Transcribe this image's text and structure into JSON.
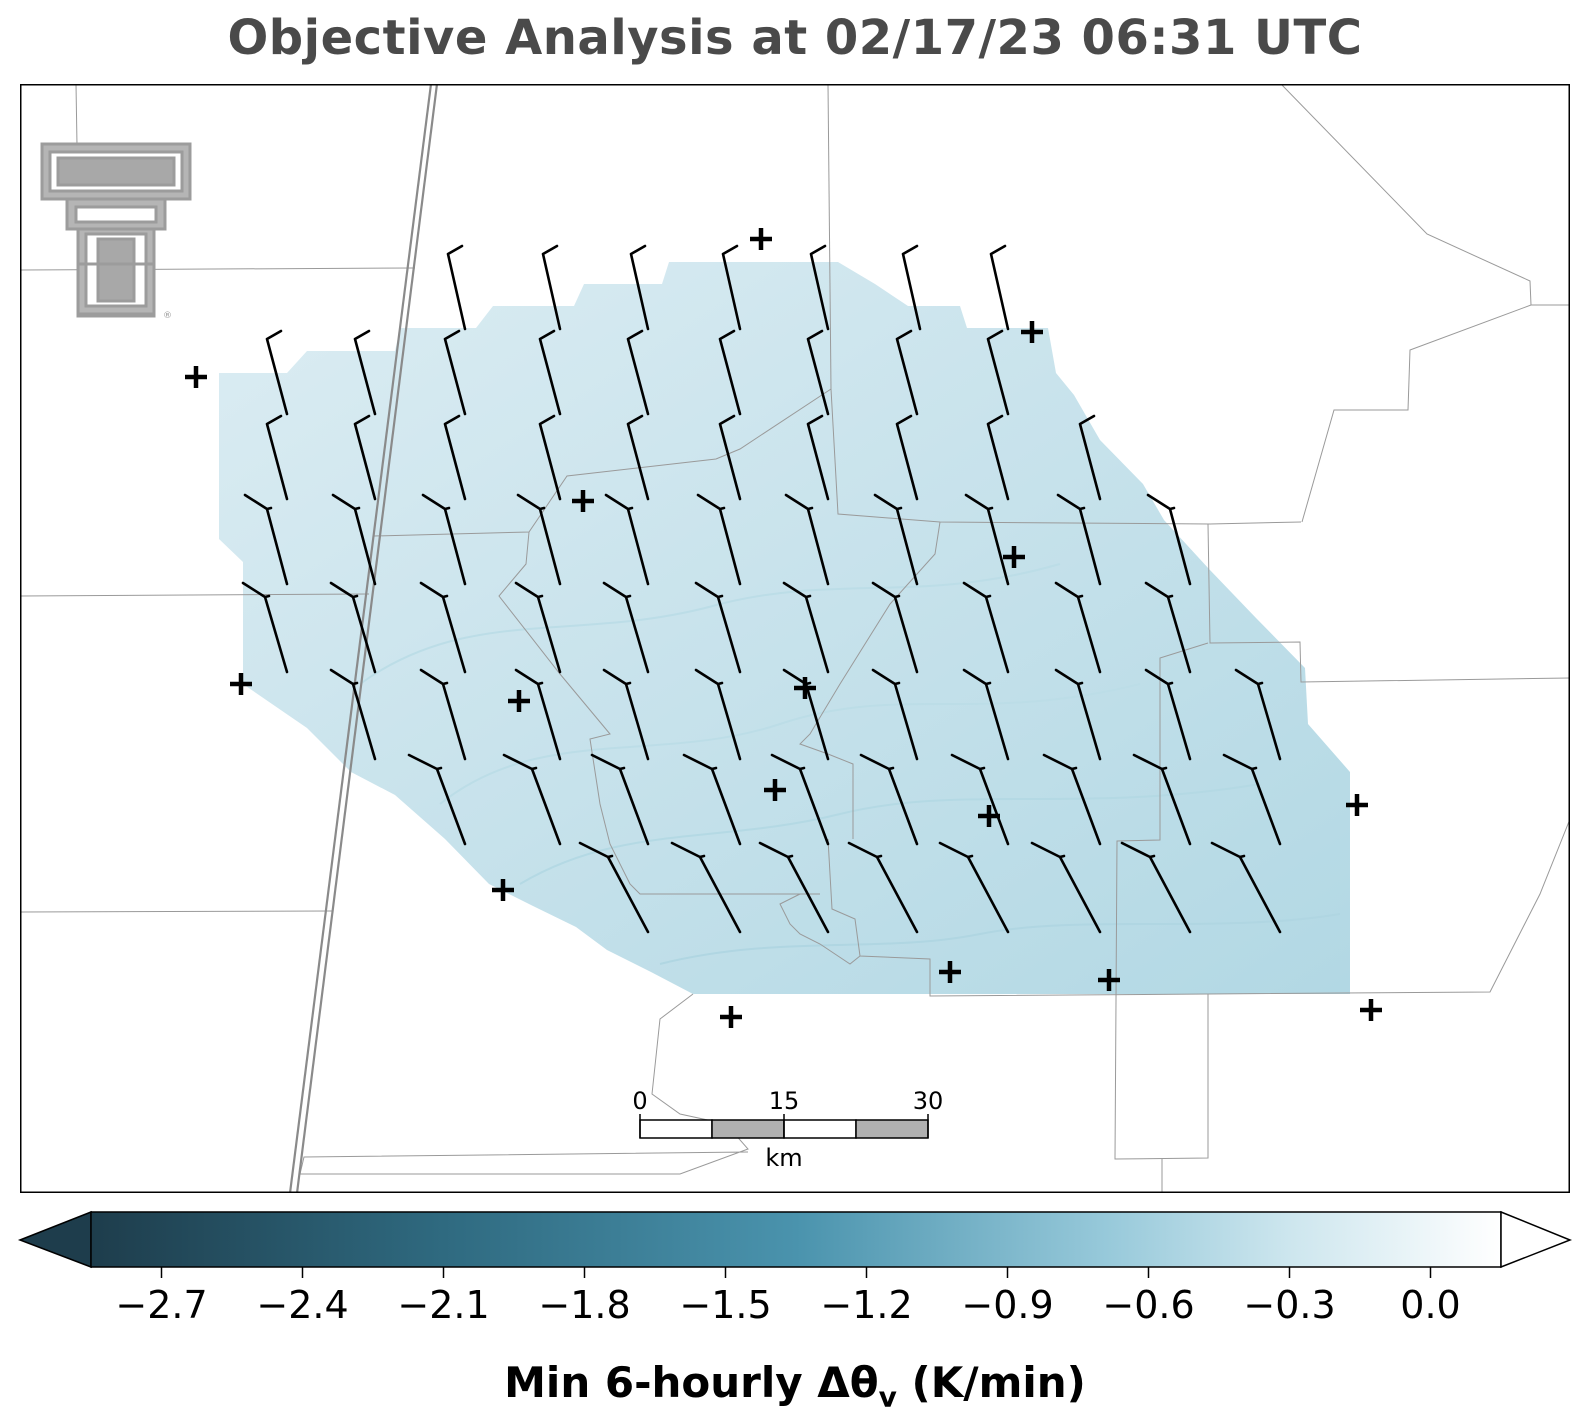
{
  "title": "Objective Analysis at 02/17/23 06:31 UTC",
  "colorbar": {
    "label": "Min 6-hourly Δθ",
    "label_sub": "v",
    "label_units": " (K/min)",
    "ticks": [
      "−2.7",
      "−2.4",
      "−2.1",
      "−1.8",
      "−1.5",
      "−1.2",
      "−0.9",
      "−0.6",
      "−0.3",
      "0.0"
    ],
    "tick_values": [
      -2.7,
      -2.4,
      -2.1,
      -1.8,
      -1.5,
      -1.2,
      -0.9,
      -0.6,
      -0.3,
      0.0
    ],
    "range": [
      -2.85,
      0.15
    ],
    "extend": "both",
    "colors": {
      "low": "#1e3d4c",
      "mid": "#4a93ad",
      "light": "#add6e3",
      "high": "#ffffff"
    }
  },
  "scale_bar": {
    "labels": [
      "0",
      "15",
      "30"
    ],
    "units": "km"
  },
  "logo": "texas-tech-double-t-logo",
  "station_marker": "plus-icon",
  "analysis_fill": "#d2e8ef"
}
